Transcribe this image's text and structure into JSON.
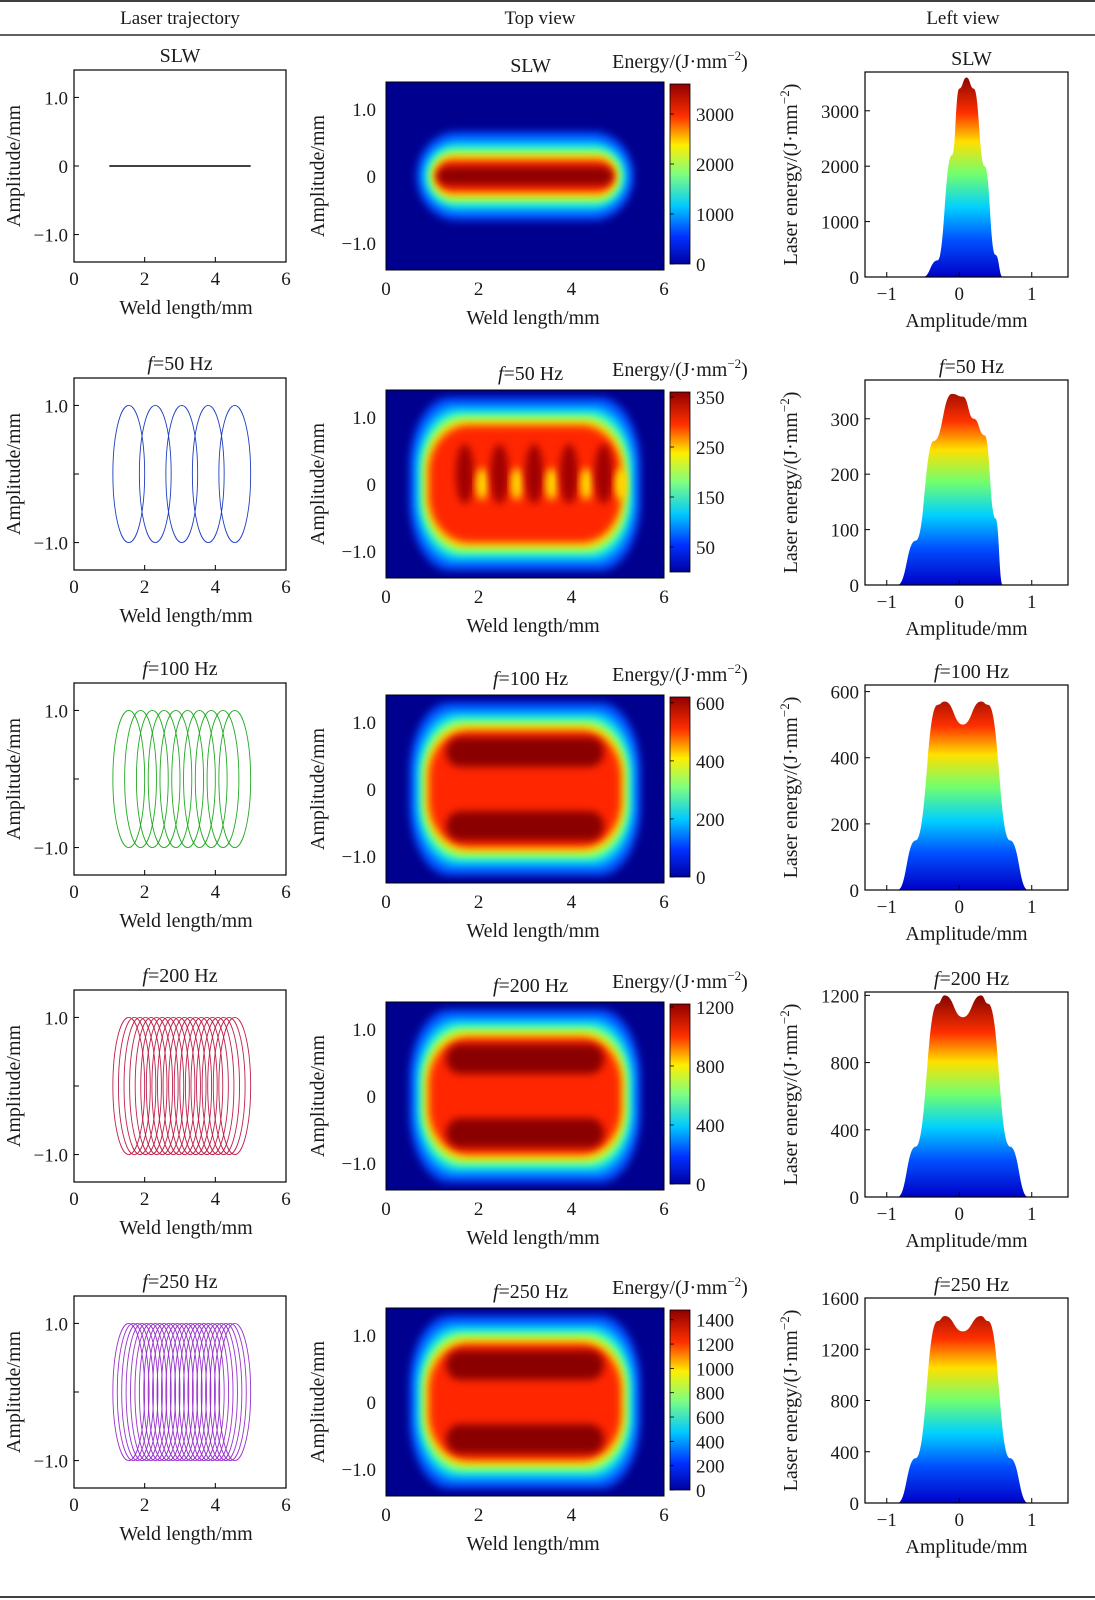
{
  "header": {
    "columns": [
      "Laser trajectory",
      "Top view",
      "Left view"
    ]
  },
  "labels": {
    "weld_length": "Weld length/mm",
    "amplitude": "Amplitude/mm",
    "laser_energy": "Laser energy/(J·mm",
    "energy": "Energy/(J·mm",
    "exp": "−2",
    "close": ")"
  },
  "chart_data": {
    "type": "multi-panel",
    "rows": [
      {
        "title_prefix": "",
        "title_main": "SLW",
        "trajectory": {
          "kind": "line",
          "color": "#000000",
          "x_start": 1,
          "x_end": 5,
          "y": 0,
          "xlim": [
            0,
            6
          ],
          "ylim": [
            -1.4,
            1.4
          ],
          "xticks": [
            "0",
            "2",
            "4",
            "6"
          ],
          "yticks": [
            "1.0",
            "0",
            "−1.0"
          ]
        },
        "top_view": {
          "xlim": [
            0,
            6
          ],
          "ylim": [
            -1.4,
            1.4
          ],
          "xticks": [
            "0",
            "2",
            "4",
            "6"
          ],
          "yticks": [
            "1.0",
            "0",
            "−1.0"
          ],
          "colorbar_max": 3600,
          "colorbar_ticks": [
            "3000",
            "2000",
            "1000",
            "0"
          ],
          "colorbar_values": [
            3000,
            2000,
            1000,
            0
          ],
          "pattern": "single"
        },
        "left_view": {
          "xlim": [
            -1.3,
            1.5
          ],
          "ymax": 3700,
          "yticks": [
            "3000",
            "2000",
            "1000",
            "0"
          ],
          "ytick_values": [
            3000,
            2000,
            1000,
            0
          ],
          "xticks": [
            "−1",
            "0",
            "1"
          ],
          "profile_points": [
            [
              -0.5,
              0
            ],
            [
              -0.3,
              300
            ],
            [
              -0.1,
              2200
            ],
            [
              0.0,
              3400
            ],
            [
              0.1,
              3600
            ],
            [
              0.2,
              3400
            ],
            [
              0.35,
              2000
            ],
            [
              0.5,
              400
            ],
            [
              0.6,
              0
            ]
          ]
        }
      },
      {
        "title_prefix": "f",
        "title_main": "=50 Hz",
        "trajectory": {
          "kind": "loops",
          "color": "#1f3fbf",
          "loops": 5,
          "amplitude": 1.0,
          "xlim": [
            0,
            6
          ],
          "ylim": [
            -1.4,
            1.4
          ],
          "xticks": [
            "0",
            "2",
            "4",
            "6"
          ],
          "yticks": [
            "1.0",
            "−1.0"
          ]
        },
        "top_view": {
          "xlim": [
            0,
            6
          ],
          "ylim": [
            -1.4,
            1.4
          ],
          "xticks": [
            "0",
            "2",
            "4",
            "6"
          ],
          "yticks": [
            "1.0",
            "0",
            "−1.0"
          ],
          "colorbar_max": 360,
          "colorbar_ticks": [
            "350",
            "250",
            "150",
            "50"
          ],
          "colorbar_values": [
            350,
            250,
            150,
            50
          ],
          "pattern": "spots"
        },
        "left_view": {
          "xlim": [
            -1.3,
            1.5
          ],
          "ymax": 370,
          "yticks": [
            "300",
            "200",
            "100",
            "0"
          ],
          "ytick_values": [
            300,
            200,
            100,
            0
          ],
          "xticks": [
            "−1",
            "0",
            "1"
          ],
          "profile_points": [
            [
              -0.85,
              0
            ],
            [
              -0.6,
              80
            ],
            [
              -0.35,
              260
            ],
            [
              -0.1,
              345
            ],
            [
              0.05,
              340
            ],
            [
              0.2,
              300
            ],
            [
              0.35,
              270
            ],
            [
              0.5,
              120
            ],
            [
              0.6,
              0
            ]
          ]
        }
      },
      {
        "title_prefix": "f",
        "title_main": "=100 Hz",
        "trajectory": {
          "kind": "loops",
          "color": "#22aa22",
          "loops": 10,
          "amplitude": 1.0,
          "xlim": [
            0,
            6
          ],
          "ylim": [
            -1.4,
            1.4
          ],
          "xticks": [
            "0",
            "2",
            "4",
            "6"
          ],
          "yticks": [
            "1.0",
            "−1.0"
          ]
        },
        "top_view": {
          "xlim": [
            0,
            6
          ],
          "ylim": [
            -1.4,
            1.4
          ],
          "xticks": [
            "0",
            "2",
            "4",
            "6"
          ],
          "yticks": [
            "1.0",
            "0",
            "−1.0"
          ],
          "colorbar_max": 620,
          "colorbar_ticks": [
            "600",
            "400",
            "200",
            "0"
          ],
          "colorbar_values": [
            600,
            400,
            200,
            0
          ],
          "pattern": "bands"
        },
        "left_view": {
          "xlim": [
            -1.3,
            1.5
          ],
          "ymax": 620,
          "yticks": [
            "600",
            "400",
            "200",
            "0"
          ],
          "ytick_values": [
            600,
            400,
            200,
            0
          ],
          "xticks": [
            "−1",
            "0",
            "1"
          ],
          "profile_points": [
            [
              -0.85,
              0
            ],
            [
              -0.6,
              150
            ],
            [
              -0.3,
              560
            ],
            [
              -0.2,
              570
            ],
            [
              0.05,
              500
            ],
            [
              0.3,
              570
            ],
            [
              0.4,
              560
            ],
            [
              0.7,
              150
            ],
            [
              0.95,
              0
            ]
          ]
        }
      },
      {
        "title_prefix": "f",
        "title_main": "=200 Hz",
        "trajectory": {
          "kind": "loops",
          "color": "#c0204a",
          "loops": 20,
          "amplitude": 1.0,
          "xlim": [
            0,
            6
          ],
          "ylim": [
            -1.4,
            1.4
          ],
          "xticks": [
            "0",
            "2",
            "4",
            "6"
          ],
          "yticks": [
            "1.0",
            "−1.0"
          ]
        },
        "top_view": {
          "xlim": [
            0,
            6
          ],
          "ylim": [
            -1.4,
            1.4
          ],
          "xticks": [
            "0",
            "2",
            "4",
            "6"
          ],
          "yticks": [
            "1.0",
            "0",
            "−1.0"
          ],
          "colorbar_max": 1220,
          "colorbar_ticks": [
            "1200",
            "800",
            "400",
            "0"
          ],
          "colorbar_values": [
            1200,
            800,
            400,
            0
          ],
          "pattern": "bands"
        },
        "left_view": {
          "xlim": [
            -1.3,
            1.5
          ],
          "ymax": 1220,
          "yticks": [
            "1200",
            "800",
            "400",
            "0"
          ],
          "ytick_values": [
            1200,
            800,
            400,
            0
          ],
          "xticks": [
            "−1",
            "0",
            "1"
          ],
          "profile_points": [
            [
              -0.85,
              0
            ],
            [
              -0.6,
              300
            ],
            [
              -0.3,
              1150
            ],
            [
              -0.2,
              1200
            ],
            [
              0.05,
              1070
            ],
            [
              0.3,
              1200
            ],
            [
              0.4,
              1150
            ],
            [
              0.7,
              300
            ],
            [
              0.95,
              0
            ]
          ]
        }
      },
      {
        "title_prefix": "f",
        "title_main": "=250 Hz",
        "trajectory": {
          "kind": "loops",
          "color": "#9933cc",
          "loops": 25,
          "amplitude": 1.0,
          "xlim": [
            0,
            6
          ],
          "ylim": [
            -1.4,
            1.4
          ],
          "xticks": [
            "0",
            "2",
            "4",
            "6"
          ],
          "yticks": [
            "1.0",
            "−1.0"
          ]
        },
        "top_view": {
          "xlim": [
            0,
            6
          ],
          "ylim": [
            -1.4,
            1.4
          ],
          "xticks": [
            "0",
            "2",
            "4",
            "6"
          ],
          "yticks": [
            "1.0",
            "0",
            "−1.0"
          ],
          "colorbar_max": 1480,
          "colorbar_ticks": [
            "1400",
            "1200",
            "1000",
            "800",
            "600",
            "400",
            "200",
            "0"
          ],
          "colorbar_values": [
            1400,
            1200,
            1000,
            800,
            600,
            400,
            200,
            0
          ],
          "pattern": "bands"
        },
        "left_view": {
          "xlim": [
            -1.3,
            1.5
          ],
          "ymax": 1600,
          "yticks": [
            "1600",
            "1200",
            "800",
            "400",
            "0"
          ],
          "ytick_values": [
            1600,
            1200,
            800,
            400,
            0
          ],
          "xticks": [
            "−1",
            "0",
            "1"
          ],
          "profile_points": [
            [
              -0.85,
              0
            ],
            [
              -0.6,
              350
            ],
            [
              -0.3,
              1420
            ],
            [
              -0.2,
              1460
            ],
            [
              0.05,
              1340
            ],
            [
              0.3,
              1460
            ],
            [
              0.4,
              1420
            ],
            [
              0.7,
              350
            ],
            [
              0.95,
              0
            ]
          ]
        }
      }
    ]
  }
}
